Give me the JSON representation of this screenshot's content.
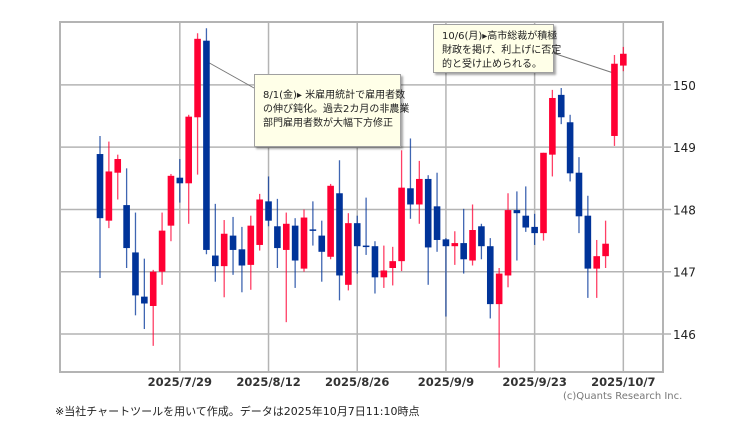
{
  "chart_data": {
    "type": "candlestick",
    "title": "",
    "xlabel": "",
    "ylabel": "",
    "ylim": [
      145.39,
      151.01
    ],
    "yticks": [
      146,
      147,
      148,
      149,
      150
    ],
    "xtick_labels": [
      "2025/7/29",
      "2025/8/12",
      "2025/8/26",
      "2025/9/9",
      "2025/9/23",
      "2025/10/7"
    ],
    "up_color": "#ff0033",
    "down_color": "#003399",
    "grid": true,
    "candles": [
      {
        "d": "2025/7/16",
        "o": 148.89,
        "h": 149.18,
        "l": 146.9,
        "c": 147.86
      },
      {
        "d": "2025/7/17",
        "o": 147.82,
        "h": 149.09,
        "l": 147.7,
        "c": 148.61
      },
      {
        "d": "2025/7/18",
        "o": 148.59,
        "h": 148.88,
        "l": 148.16,
        "c": 148.81
      },
      {
        "d": "2025/7/21",
        "o": 148.07,
        "h": 148.66,
        "l": 147.06,
        "c": 147.38
      },
      {
        "d": "2025/7/22",
        "o": 147.31,
        "h": 147.95,
        "l": 146.3,
        "c": 146.62
      },
      {
        "d": "2025/7/23",
        "o": 146.6,
        "h": 147.21,
        "l": 146.08,
        "c": 146.49
      },
      {
        "d": "2025/7/24",
        "o": 146.45,
        "h": 147.03,
        "l": 145.81,
        "c": 147.0
      },
      {
        "d": "2025/7/25",
        "o": 147.0,
        "h": 147.95,
        "l": 146.79,
        "c": 147.66
      },
      {
        "d": "2025/7/28",
        "o": 147.74,
        "h": 148.57,
        "l": 147.49,
        "c": 148.54
      },
      {
        "d": "2025/7/29",
        "o": 148.51,
        "h": 148.81,
        "l": 148.11,
        "c": 148.42
      },
      {
        "d": "2025/7/30",
        "o": 148.42,
        "h": 149.52,
        "l": 147.77,
        "c": 149.49
      },
      {
        "d": "2025/7/31",
        "o": 149.48,
        "h": 150.83,
        "l": 148.56,
        "c": 150.74
      },
      {
        "d": "2025/8/1",
        "o": 150.71,
        "h": 150.91,
        "l": 147.28,
        "c": 147.35
      },
      {
        "d": "2025/8/4",
        "o": 147.26,
        "h": 148.09,
        "l": 146.84,
        "c": 147.09
      },
      {
        "d": "2025/8/5",
        "o": 147.09,
        "h": 147.83,
        "l": 146.59,
        "c": 147.61
      },
      {
        "d": "2025/8/6",
        "o": 147.58,
        "h": 147.88,
        "l": 146.95,
        "c": 147.35
      },
      {
        "d": "2025/8/7",
        "o": 147.36,
        "h": 147.72,
        "l": 146.67,
        "c": 147.1
      },
      {
        "d": "2025/8/8",
        "o": 147.11,
        "h": 147.9,
        "l": 146.71,
        "c": 147.74
      },
      {
        "d": "2025/8/11",
        "o": 147.43,
        "h": 148.25,
        "l": 147.34,
        "c": 148.16
      },
      {
        "d": "2025/8/12",
        "o": 148.13,
        "h": 148.53,
        "l": 147.73,
        "c": 147.82
      },
      {
        "d": "2025/8/13",
        "o": 147.73,
        "h": 148.17,
        "l": 147.06,
        "c": 147.38
      },
      {
        "d": "2025/8/14",
        "o": 147.35,
        "h": 147.95,
        "l": 146.19,
        "c": 147.77
      },
      {
        "d": "2025/8/15",
        "o": 147.74,
        "h": 147.86,
        "l": 146.74,
        "c": 147.18
      },
      {
        "d": "2025/8/18",
        "o": 147.05,
        "h": 148.0,
        "l": 147.0,
        "c": 147.87
      },
      {
        "d": "2025/8/19",
        "o": 147.68,
        "h": 148.13,
        "l": 147.42,
        "c": 147.67
      },
      {
        "d": "2025/8/20",
        "o": 147.58,
        "h": 147.82,
        "l": 146.84,
        "c": 147.32
      },
      {
        "d": "2025/8/21",
        "o": 147.24,
        "h": 148.41,
        "l": 147.2,
        "c": 148.38
      },
      {
        "d": "2025/8/22",
        "o": 148.26,
        "h": 148.79,
        "l": 146.54,
        "c": 146.94
      },
      {
        "d": "2025/8/25",
        "o": 146.79,
        "h": 147.94,
        "l": 146.7,
        "c": 147.78
      },
      {
        "d": "2025/8/26",
        "o": 147.78,
        "h": 147.9,
        "l": 146.97,
        "c": 147.41
      },
      {
        "d": "2025/8/27",
        "o": 147.42,
        "h": 148.19,
        "l": 147.27,
        "c": 147.41
      },
      {
        "d": "2025/8/28",
        "o": 147.41,
        "h": 147.49,
        "l": 146.65,
        "c": 146.91
      },
      {
        "d": "2025/8/29",
        "o": 146.91,
        "h": 147.42,
        "l": 146.74,
        "c": 147.02
      },
      {
        "d": "2025/9/1",
        "o": 147.06,
        "h": 147.4,
        "l": 146.78,
        "c": 147.17
      },
      {
        "d": "2025/9/2",
        "o": 147.17,
        "h": 148.95,
        "l": 147.01,
        "c": 148.35
      },
      {
        "d": "2025/9/3",
        "o": 148.34,
        "h": 149.14,
        "l": 147.85,
        "c": 148.08
      },
      {
        "d": "2025/9/4",
        "o": 148.08,
        "h": 148.78,
        "l": 147.77,
        "c": 148.49
      },
      {
        "d": "2025/9/5",
        "o": 148.49,
        "h": 148.55,
        "l": 146.79,
        "c": 147.39
      },
      {
        "d": "2025/9/8",
        "o": 148.05,
        "h": 148.59,
        "l": 147.32,
        "c": 147.51
      },
      {
        "d": "2025/9/9",
        "o": 147.52,
        "h": 147.54,
        "l": 146.28,
        "c": 147.41
      },
      {
        "d": "2025/9/10",
        "o": 147.41,
        "h": 147.65,
        "l": 147.11,
        "c": 147.46
      },
      {
        "d": "2025/9/11",
        "o": 147.46,
        "h": 148.01,
        "l": 146.97,
        "c": 147.2
      },
      {
        "d": "2025/9/12",
        "o": 147.18,
        "h": 148.08,
        "l": 147.1,
        "c": 147.67
      },
      {
        "d": "2025/9/15",
        "o": 147.73,
        "h": 147.77,
        "l": 147.2,
        "c": 147.41
      },
      {
        "d": "2025/9/16",
        "o": 147.41,
        "h": 147.54,
        "l": 146.25,
        "c": 146.48
      },
      {
        "d": "2025/9/17",
        "o": 146.48,
        "h": 147.06,
        "l": 145.46,
        "c": 146.97
      },
      {
        "d": "2025/9/18",
        "o": 146.94,
        "h": 148.26,
        "l": 146.75,
        "c": 147.99
      },
      {
        "d": "2025/9/19",
        "o": 147.99,
        "h": 148.29,
        "l": 147.18,
        "c": 147.94
      },
      {
        "d": "2025/9/22",
        "o": 147.9,
        "h": 148.37,
        "l": 147.64,
        "c": 147.71
      },
      {
        "d": "2025/9/23",
        "o": 147.72,
        "h": 147.93,
        "l": 147.43,
        "c": 147.62
      },
      {
        "d": "2025/9/24",
        "o": 147.62,
        "h": 148.91,
        "l": 147.5,
        "c": 148.91
      },
      {
        "d": "2025/9/25",
        "o": 148.88,
        "h": 149.92,
        "l": 148.53,
        "c": 149.79
      },
      {
        "d": "2025/9/26",
        "o": 149.84,
        "h": 149.95,
        "l": 149.37,
        "c": 149.48
      },
      {
        "d": "2025/9/29",
        "o": 149.4,
        "h": 149.52,
        "l": 148.45,
        "c": 148.58
      },
      {
        "d": "2025/9/30",
        "o": 148.59,
        "h": 148.84,
        "l": 147.62,
        "c": 147.89
      },
      {
        "d": "2025/10/1",
        "o": 147.9,
        "h": 148.22,
        "l": 146.58,
        "c": 147.05
      },
      {
        "d": "2025/10/2",
        "o": 147.05,
        "h": 147.51,
        "l": 146.58,
        "c": 147.25
      },
      {
        "d": "2025/10/3",
        "o": 147.25,
        "h": 147.82,
        "l": 147.06,
        "c": 147.45
      },
      {
        "d": "2025/10/6",
        "o": 149.18,
        "h": 150.48,
        "l": 149.02,
        "c": 150.34
      },
      {
        "d": "2025/10/7",
        "o": 150.31,
        "h": 150.61,
        "l": 150.22,
        "c": 150.5
      }
    ],
    "annotations": [
      {
        "date": "2025/8/1",
        "lines": [
          "8/1(金)▸ 米雇用統計で雇用者数",
          "の伸び鈍化。過去2カ月の非農業",
          "部門雇用者数が大幅下方修正"
        ]
      },
      {
        "date": "2025/10/6",
        "lines": [
          "10/6(月)▸高市総裁が積極",
          "財政を掲げ、利上げに否定",
          "的と受け止められる。"
        ]
      }
    ]
  },
  "footer": {
    "note": "※当社チャートツールを用いて作成。データは2025年10月7日11:10時点",
    "copyright": "(c)Quants Research Inc."
  }
}
